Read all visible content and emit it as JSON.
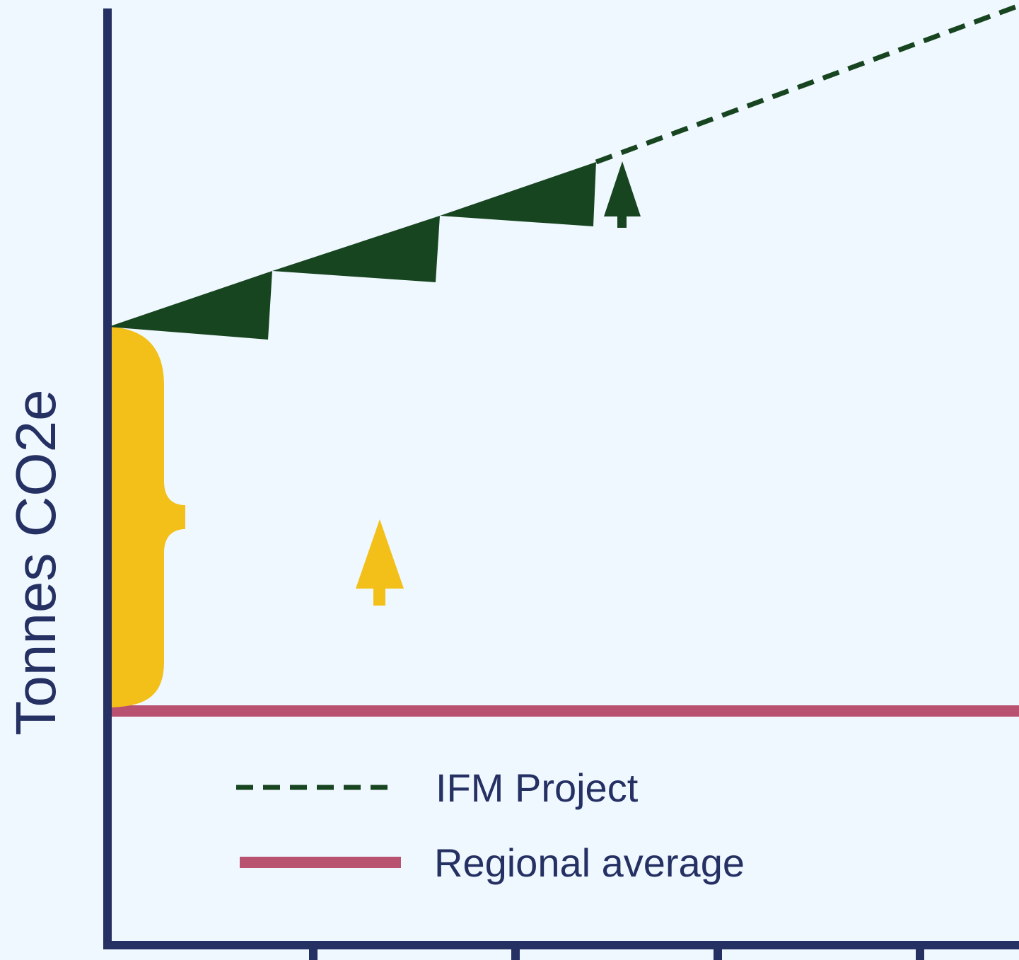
{
  "colors": {
    "background": "#f0f8ff",
    "axis": "#253063",
    "project": "#17451f",
    "regional": "#b85270",
    "increment": "#f2c018"
  },
  "diagram": {
    "y_axis_label": "Tonnes CO2e",
    "x_tick_count": 4
  },
  "legend": {
    "items": [
      {
        "label": "IFM Project",
        "style": "dashed",
        "color": "#17451f"
      },
      {
        "label": "Regional average",
        "style": "solid",
        "color": "#b85270"
      }
    ]
  }
}
